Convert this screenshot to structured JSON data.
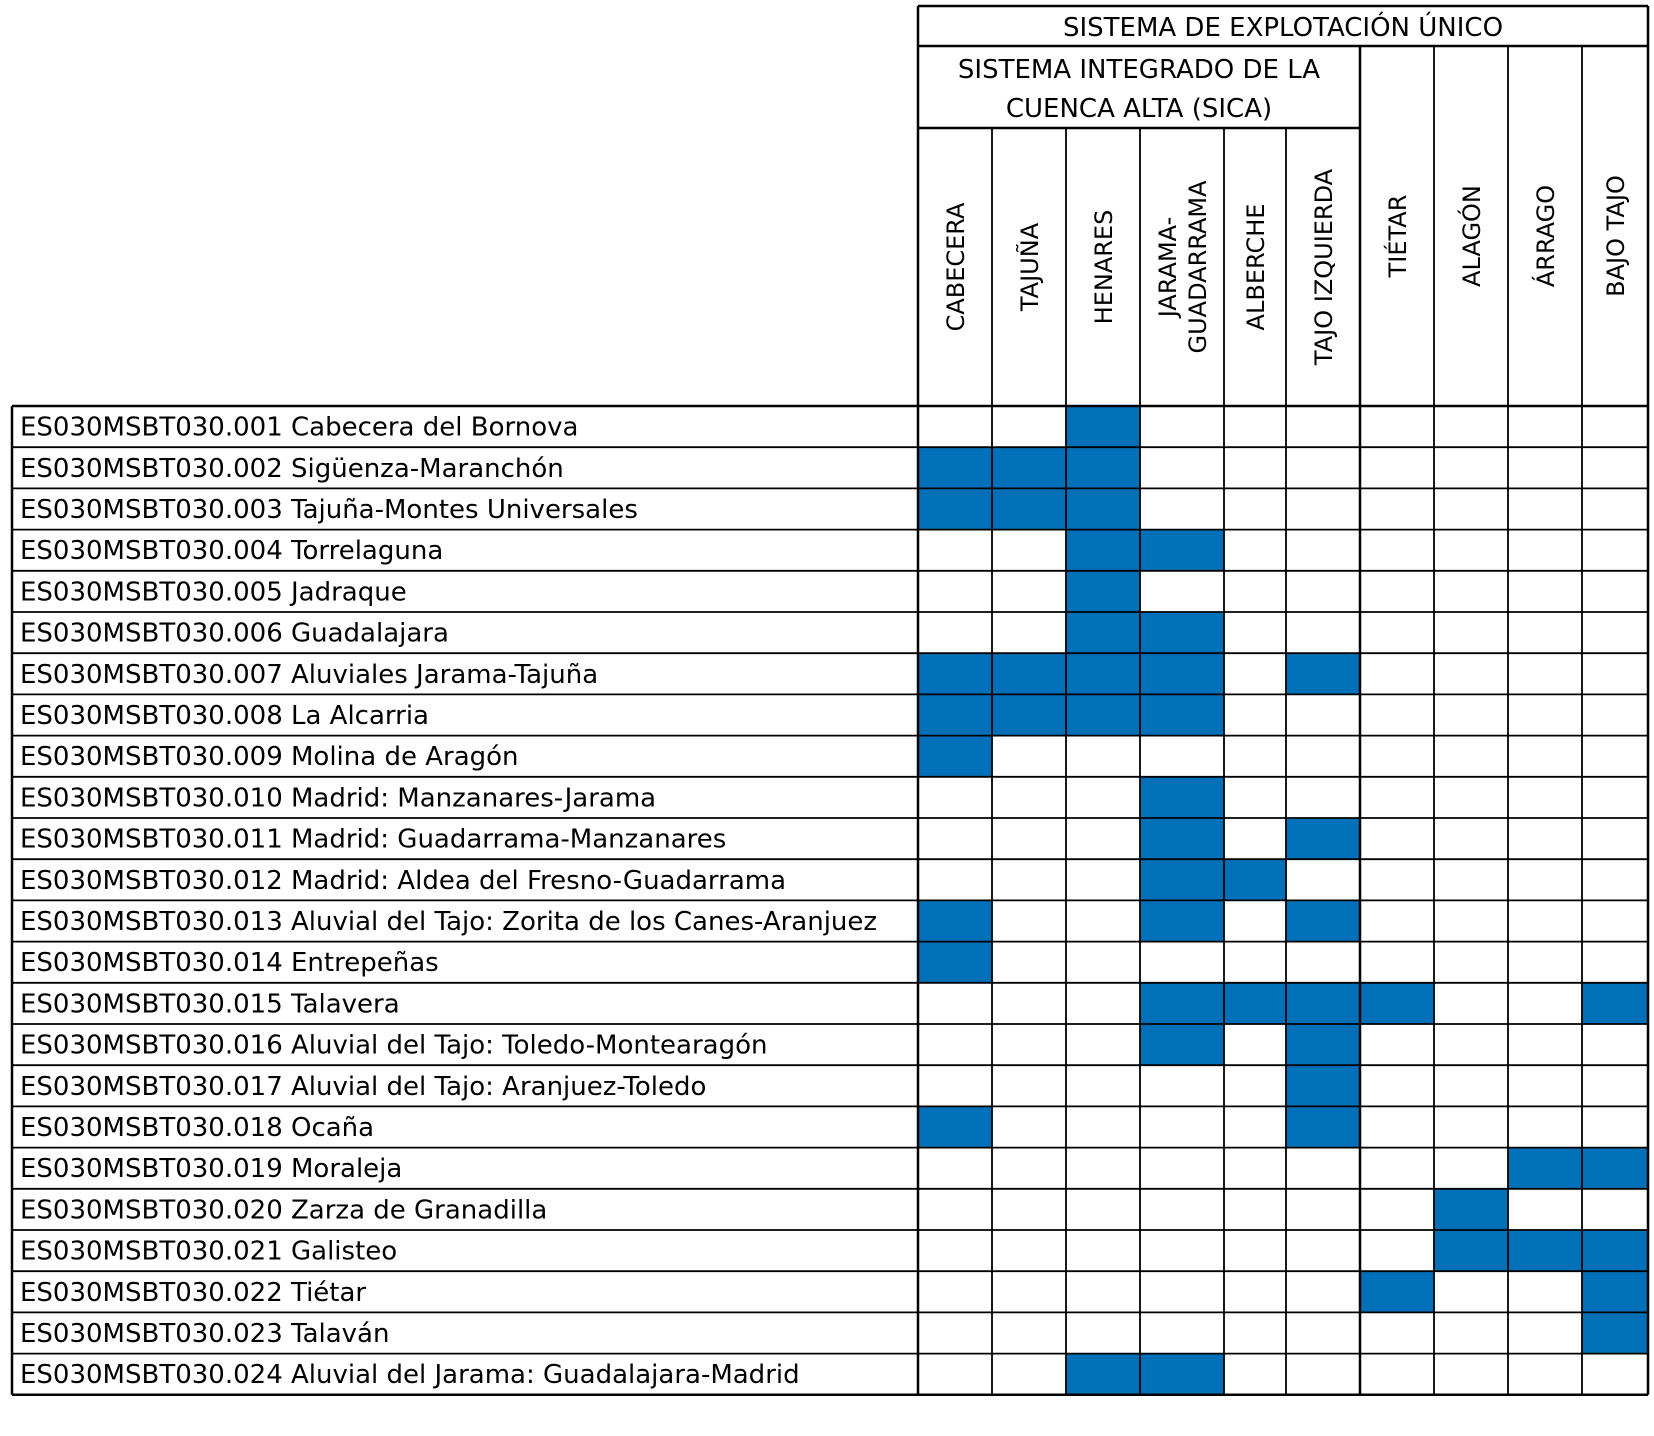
{
  "header": {
    "top": "SISTEMA DE EXPLOTACIÓN ÚNICO",
    "sica_line1": "SISTEMA INTEGRADO DE LA",
    "sica_line2": "CUENCA ALTA (SICA)"
  },
  "columns": [
    {
      "lines": [
        "CABECERA"
      ]
    },
    {
      "lines": [
        "TAJUÑA"
      ]
    },
    {
      "lines": [
        "HENARES"
      ]
    },
    {
      "lines": [
        "JARAMA-",
        "GUADARRAMA"
      ]
    },
    {
      "lines": [
        "ALBERCHE"
      ]
    },
    {
      "lines": [
        "TAJO IZQUIERDA"
      ]
    },
    {
      "lines": [
        "TIÉTAR"
      ]
    },
    {
      "lines": [
        "ALAGÓN"
      ]
    },
    {
      "lines": [
        "ÁRRAGO"
      ]
    },
    {
      "lines": [
        "BAJO TAJO"
      ]
    }
  ],
  "rows": [
    {
      "label": "ES030MSBT030.001 Cabecera del Bornova",
      "cells": [
        0,
        0,
        1,
        0,
        0,
        0,
        0,
        0,
        0,
        0
      ]
    },
    {
      "label": "ES030MSBT030.002 Sigüenza-Maranchón",
      "cells": [
        1,
        1,
        1,
        0,
        0,
        0,
        0,
        0,
        0,
        0
      ]
    },
    {
      "label": "ES030MSBT030.003 Tajuña-Montes Universales",
      "cells": [
        1,
        1,
        1,
        0,
        0,
        0,
        0,
        0,
        0,
        0
      ]
    },
    {
      "label": "ES030MSBT030.004 Torrelaguna",
      "cells": [
        0,
        0,
        1,
        1,
        0,
        0,
        0,
        0,
        0,
        0
      ]
    },
    {
      "label": "ES030MSBT030.005 Jadraque",
      "cells": [
        0,
        0,
        1,
        0,
        0,
        0,
        0,
        0,
        0,
        0
      ]
    },
    {
      "label": "ES030MSBT030.006 Guadalajara",
      "cells": [
        0,
        0,
        1,
        1,
        0,
        0,
        0,
        0,
        0,
        0
      ]
    },
    {
      "label": "ES030MSBT030.007 Aluviales Jarama-Tajuña",
      "cells": [
        1,
        1,
        1,
        1,
        0,
        1,
        0,
        0,
        0,
        0
      ]
    },
    {
      "label": "ES030MSBT030.008 La Alcarria",
      "cells": [
        1,
        1,
        1,
        1,
        0,
        0,
        0,
        0,
        0,
        0
      ]
    },
    {
      "label": "ES030MSBT030.009 Molina de Aragón",
      "cells": [
        1,
        0,
        0,
        0,
        0,
        0,
        0,
        0,
        0,
        0
      ]
    },
    {
      "label": "ES030MSBT030.010 Madrid: Manzanares-Jarama",
      "cells": [
        0,
        0,
        0,
        1,
        0,
        0,
        0,
        0,
        0,
        0
      ]
    },
    {
      "label": "ES030MSBT030.011 Madrid: Guadarrama-Manzanares",
      "cells": [
        0,
        0,
        0,
        1,
        0,
        1,
        0,
        0,
        0,
        0
      ]
    },
    {
      "label": "ES030MSBT030.012 Madrid: Aldea del Fresno-Guadarrama",
      "cells": [
        0,
        0,
        0,
        1,
        1,
        0,
        0,
        0,
        0,
        0
      ]
    },
    {
      "label": "ES030MSBT030.013 Aluvial del Tajo: Zorita de los Canes-Aranjuez",
      "cells": [
        1,
        0,
        0,
        1,
        0,
        1,
        0,
        0,
        0,
        0
      ]
    },
    {
      "label": "ES030MSBT030.014 Entrepeñas",
      "cells": [
        1,
        0,
        0,
        0,
        0,
        0,
        0,
        0,
        0,
        0
      ]
    },
    {
      "label": "ES030MSBT030.015 Talavera",
      "cells": [
        0,
        0,
        0,
        1,
        1,
        1,
        1,
        0,
        0,
        1
      ]
    },
    {
      "label": "ES030MSBT030.016 Aluvial del Tajo: Toledo-Montearagón",
      "cells": [
        0,
        0,
        0,
        1,
        0,
        1,
        0,
        0,
        0,
        0
      ]
    },
    {
      "label": "ES030MSBT030.017 Aluvial del Tajo: Aranjuez-Toledo",
      "cells": [
        0,
        0,
        0,
        0,
        0,
        1,
        0,
        0,
        0,
        0
      ]
    },
    {
      "label": "ES030MSBT030.018 Ocaña",
      "cells": [
        1,
        0,
        0,
        0,
        0,
        1,
        0,
        0,
        0,
        0
      ]
    },
    {
      "label": "ES030MSBT030.019 Moraleja",
      "cells": [
        0,
        0,
        0,
        0,
        0,
        0,
        0,
        0,
        1,
        1
      ]
    },
    {
      "label": "ES030MSBT030.020 Zarza de Granadilla",
      "cells": [
        0,
        0,
        0,
        0,
        0,
        0,
        0,
        1,
        0,
        0
      ]
    },
    {
      "label": "ES030MSBT030.021 Galisteo",
      "cells": [
        0,
        0,
        0,
        0,
        0,
        0,
        0,
        1,
        1,
        1
      ]
    },
    {
      "label": "ES030MSBT030.022 Tiétar",
      "cells": [
        0,
        0,
        0,
        0,
        0,
        0,
        1,
        0,
        0,
        1
      ]
    },
    {
      "label": "ES030MSBT030.023 Talaván",
      "cells": [
        0,
        0,
        0,
        0,
        0,
        0,
        0,
        0,
        0,
        1
      ]
    },
    {
      "label": "ES030MSBT030.024 Aluvial del Jarama: Guadalajara-Madrid",
      "cells": [
        0,
        0,
        1,
        1,
        0,
        0,
        0,
        0,
        0,
        0
      ]
    }
  ],
  "colors": {
    "fill": "#0070B8",
    "line": "#000000"
  }
}
